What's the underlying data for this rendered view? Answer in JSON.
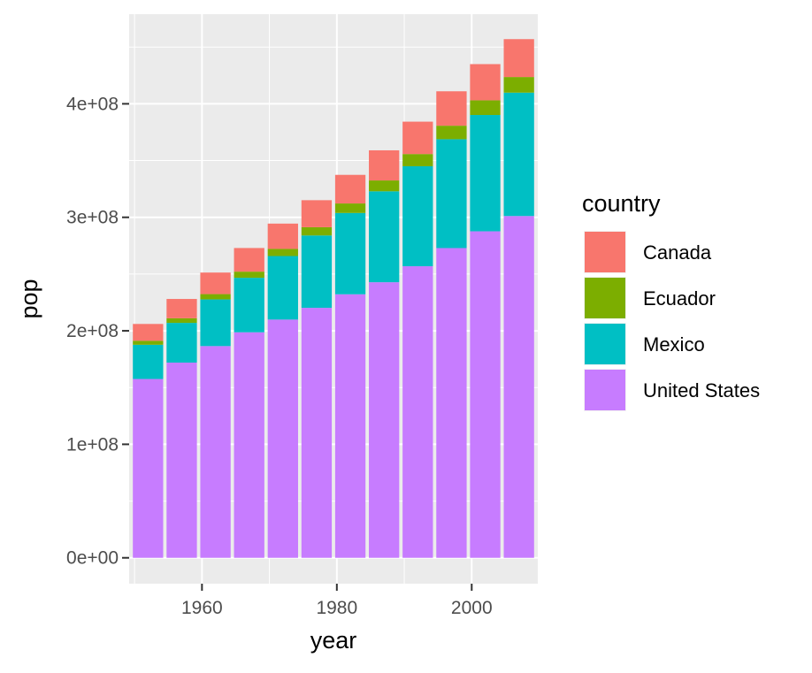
{
  "chart_data": {
    "type": "bar",
    "stacked": true,
    "xlabel": "year",
    "ylabel": "pop",
    "x": [
      1952,
      1957,
      1962,
      1967,
      1972,
      1977,
      1982,
      1987,
      1992,
      1997,
      2002,
      2007
    ],
    "xlim": [
      1949.2,
      2009.8
    ],
    "ylim": [
      -22800000,
      479000000
    ],
    "x_ticks": [
      1960,
      1980,
      2000
    ],
    "x_tick_labels": [
      "1960",
      "1980",
      "2000"
    ],
    "y_ticks": [
      0,
      100000000,
      200000000,
      300000000,
      400000000
    ],
    "y_tick_labels": [
      "0e+00",
      "1e+08",
      "2e+08",
      "3e+08",
      "4e+08"
    ],
    "grid": true,
    "legend_position": "right",
    "legend_title": "country",
    "series": [
      {
        "name": "United States",
        "color": "#C77CFF",
        "values": [
          157550000,
          171980000,
          186540000,
          198710000,
          209900000,
          220240000,
          232190000,
          242800000,
          256890000,
          272910000,
          287680000,
          301140000
        ]
      },
      {
        "name": "Mexico",
        "color": "#00BFC4",
        "values": [
          30150000,
          35020000,
          41120000,
          47990000,
          55980000,
          63760000,
          71640000,
          80120000,
          88110000,
          95900000,
          102480000,
          108700000
        ]
      },
      {
        "name": "Ecuador",
        "color": "#7CAE00",
        "values": [
          3550000,
          4060000,
          4680000,
          5430000,
          6300000,
          7280000,
          8370000,
          9550000,
          10750000,
          11910000,
          12920000,
          13760000
        ]
      },
      {
        "name": "Canada",
        "color": "#F8766D",
        "values": [
          14790000,
          17010000,
          18990000,
          20820000,
          22280000,
          23800000,
          25200000,
          26550000,
          28520000,
          30310000,
          31900000,
          33390000
        ]
      }
    ],
    "legend_order": [
      "Canada",
      "Ecuador",
      "Mexico",
      "United States"
    ]
  },
  "colors": {
    "panel_background": "#EBEBEB",
    "grid_major": "#FFFFFF",
    "tick_mark": "#333333",
    "tick_label": "#4D4D4D"
  }
}
